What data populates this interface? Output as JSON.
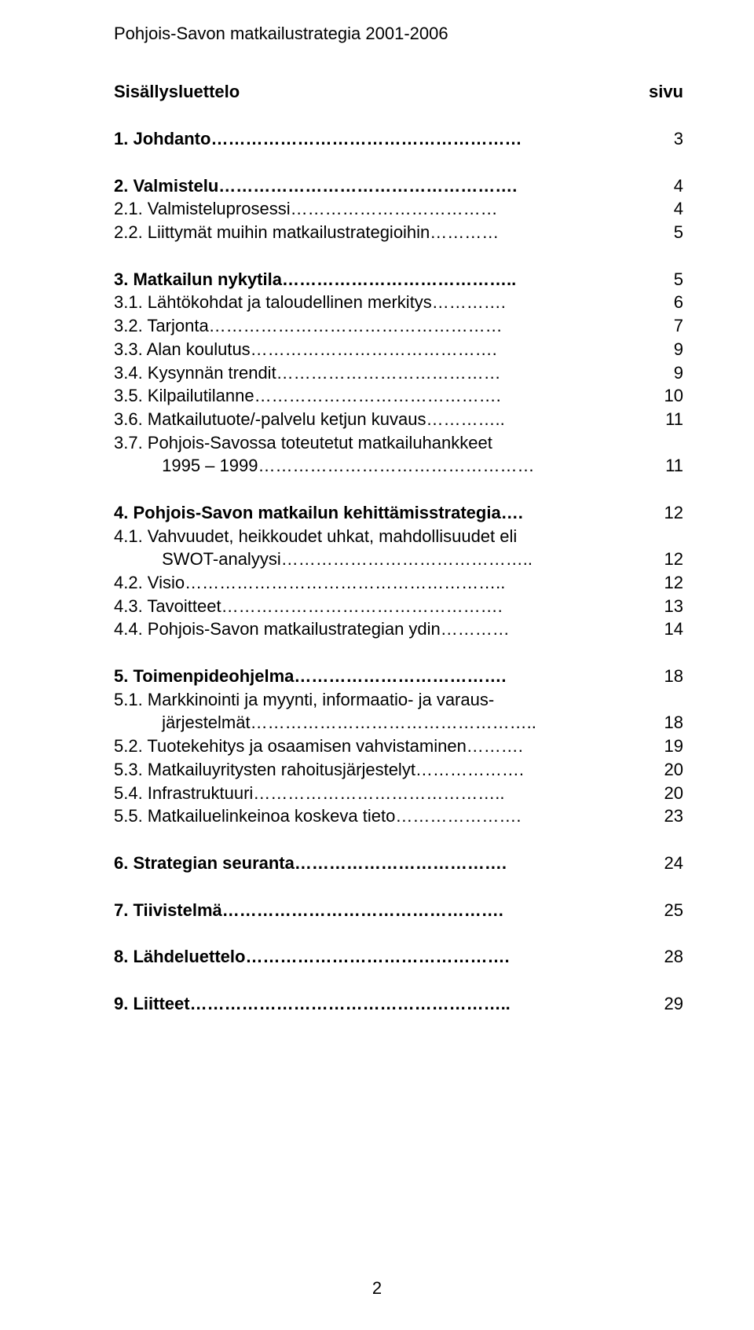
{
  "doc_title": "Pohjois-Savon matkailustrategia 2001-2006",
  "toc_heading": "Sisällysluettelo",
  "toc_page_label": "sivu",
  "page_number": "2",
  "sections": [
    {
      "rows": [
        {
          "text": "1. Johdanto………………………………………………",
          "page": "3",
          "bold": true
        }
      ]
    },
    {
      "rows": [
        {
          "text": "2. Valmistelu…………………………………………….",
          "page": "4",
          "bold": true
        },
        {
          "text": "2.1. Valmisteluprosessi………………………………",
          "page": "4"
        },
        {
          "text": "2.2. Liittymät muihin matkailustrategioihin…………",
          "page": "5"
        }
      ]
    },
    {
      "rows": [
        {
          "text": "3. Matkailun nykytila…………………………………..",
          "page": "5",
          "bold": true
        },
        {
          "text": "3.1. Lähtökohdat ja taloudellinen merkitys………….",
          "page": "6"
        },
        {
          "text": "3.2. Tarjonta……………………………………………",
          "page": "7"
        },
        {
          "text": "3.3. Alan koulutus…………………………………….",
          "page": "9"
        },
        {
          "text": "3.4. Kysynnän trendit…………………………………",
          "page": "9"
        },
        {
          "text": "3.5. Kilpailutilanne…………………………………….",
          "page": "10"
        },
        {
          "text": "3.6. Matkailutuote/-palvelu ketjun kuvaus…………..",
          "page": "11"
        },
        {
          "text": "3.7. Pohjois-Savossa toteutetut matkailuhankkeet",
          "page": ""
        },
        {
          "text": "1995 – 1999…………………………………………",
          "page": "11",
          "indent": true
        }
      ]
    },
    {
      "rows": [
        {
          "text": "4. Pohjois-Savon matkailun kehittämisstrategia….",
          "page": "12",
          "bold": true
        },
        {
          "text": "4.1. Vahvuudet, heikkoudet uhkat, mahdollisuudet eli",
          "page": ""
        },
        {
          "text": "SWOT-analyysi……………………………………..",
          "page": "12",
          "indent": true
        },
        {
          "text": "4.2. Visio………………………………………………..",
          "page": "12"
        },
        {
          "text": "4.3. Tavoitteet………………………………………….",
          "page": "13"
        },
        {
          "text": "4.4. Pohjois-Savon matkailustrategian ydin…………",
          "page": "14"
        }
      ]
    },
    {
      "rows": [
        {
          "text": "5. Toimenpideohjelma……………………………….",
          "page": "18",
          "bold": true
        },
        {
          "text": "5.1. Markkinointi ja myynti, informaatio- ja varaus-",
          "page": ""
        },
        {
          "text": "järjestelmät…………………………………………..",
          "page": "18",
          "indent": true
        },
        {
          "text": "5.2. Tuotekehitys ja osaamisen vahvistaminen……….",
          "page": "19"
        },
        {
          "text": "5.3. Matkailuyritysten rahoitusjärjestelyt……………….",
          "page": "20"
        },
        {
          "text": "5.4. Infrastruktuuri……………………………………..",
          "page": "20"
        },
        {
          "text": "5.5. Matkailuelinkeinoa koskeva tieto………………….",
          "page": "23"
        }
      ]
    },
    {
      "rows": [
        {
          "text": "6. Strategian seuranta……………………………….",
          "page": "24",
          "bold": true
        }
      ]
    },
    {
      "rows": [
        {
          "text": "7. Tiivistelmä………………………………………….",
          "page": "25",
          "bold": true
        }
      ]
    },
    {
      "rows": [
        {
          "text": "8. Lähdeluettelo……………………………………….",
          "page": "28",
          "bold": true
        }
      ]
    },
    {
      "rows": [
        {
          "text": "9. Liitteet………………………………………………..",
          "page": "29",
          "bold": true
        }
      ]
    }
  ]
}
